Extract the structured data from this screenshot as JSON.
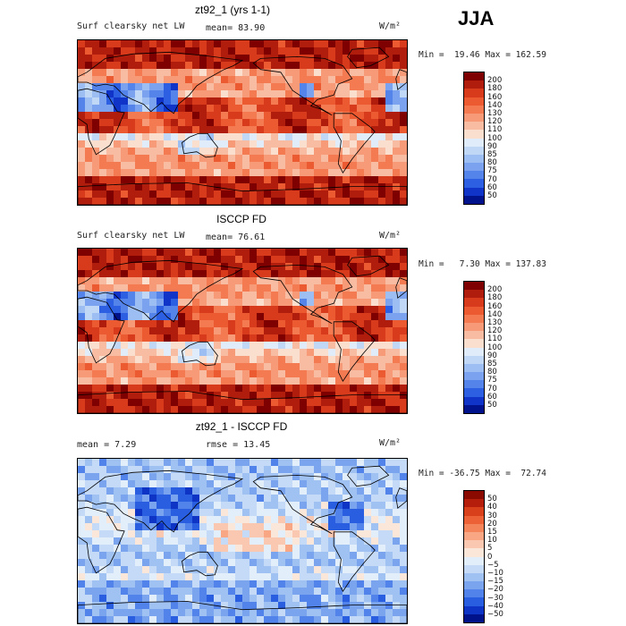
{
  "season": "JJA",
  "units": "W/m²",
  "panels": [
    {
      "title": "zt92_1 (yrs 1-1)",
      "left_label": "Surf clearsky net LW",
      "mid_label": "mean=  83.90",
      "minmax": "Min =  19.46 Max = 162.59",
      "scheme": "abs",
      "mean": 83.9
    },
    {
      "title": "ISCCP FD",
      "left_label": "Surf clearsky net LW",
      "mid_label": "mean=  76.61",
      "minmax": "Min =   7.30 Max = 137.83",
      "scheme": "abs",
      "mean": 76.61
    },
    {
      "title": "zt92_1 - ISCCP FD",
      "left_label": "mean =   7.29",
      "mid_label": "rmse =  13.45",
      "minmax": "Min = -36.75 Max =  72.74",
      "scheme": "diff",
      "mean": 7.29
    }
  ],
  "chart_data": [
    {
      "type": "heatmap",
      "title": "zt92_1 (yrs 1-1)",
      "subtitle": "Surf clearsky net LW",
      "units": "W/m²",
      "mean": 83.9,
      "min": 19.46,
      "max": 162.59,
      "colorbar_levels": [
        "200",
        "180",
        "160",
        "140",
        "130",
        "120",
        "110",
        "100",
        "90",
        "85",
        "80",
        "75",
        "70",
        "60",
        "50"
      ],
      "colorbar_colors": [
        "#7f0000",
        "#b01d0c",
        "#d83a1c",
        "#ec5a32",
        "#f47a52",
        "#f79a78",
        "#f8bca2",
        "#fadfcf",
        "#e0ecfa",
        "#c0d8f6",
        "#9cbef2",
        "#7aa2ee",
        "#5483ea",
        "#2c5fe2",
        "#1034c8",
        "#00138c"
      ]
    },
    {
      "type": "heatmap",
      "title": "ISCCP FD",
      "subtitle": "Surf clearsky net LW",
      "units": "W/m²",
      "mean": 76.61,
      "min": 7.3,
      "max": 137.83,
      "colorbar_levels": [
        "200",
        "180",
        "160",
        "140",
        "130",
        "120",
        "110",
        "100",
        "90",
        "85",
        "80",
        "75",
        "70",
        "60",
        "50"
      ],
      "colorbar_colors": [
        "#7f0000",
        "#b01d0c",
        "#d83a1c",
        "#ec5a32",
        "#f47a52",
        "#f79a78",
        "#f8bca2",
        "#fadfcf",
        "#e0ecfa",
        "#c0d8f6",
        "#9cbef2",
        "#7aa2ee",
        "#5483ea",
        "#2c5fe2",
        "#1034c8",
        "#00138c"
      ]
    },
    {
      "type": "heatmap",
      "title": "zt92_1 - ISCCP FD",
      "units": "W/m²",
      "mean": 7.29,
      "rmse": 13.45,
      "min": -36.75,
      "max": 72.74,
      "colorbar_levels": [
        "50",
        "40",
        "30",
        "20",
        "15",
        "10",
        "5",
        "0",
        "−5",
        "−10",
        "−15",
        "−20",
        "−30",
        "−40",
        "−50"
      ],
      "colorbar_colors": [
        "#8a0a00",
        "#b51e0a",
        "#d8401c",
        "#ec6236",
        "#f4845a",
        "#f8a684",
        "#fac7b0",
        "#fbe6da",
        "#e3eefb",
        "#c4daf6",
        "#a0c2f2",
        "#7aa4ee",
        "#5283ea",
        "#2a5ee0",
        "#0e34c6",
        "#00128a"
      ]
    }
  ]
}
